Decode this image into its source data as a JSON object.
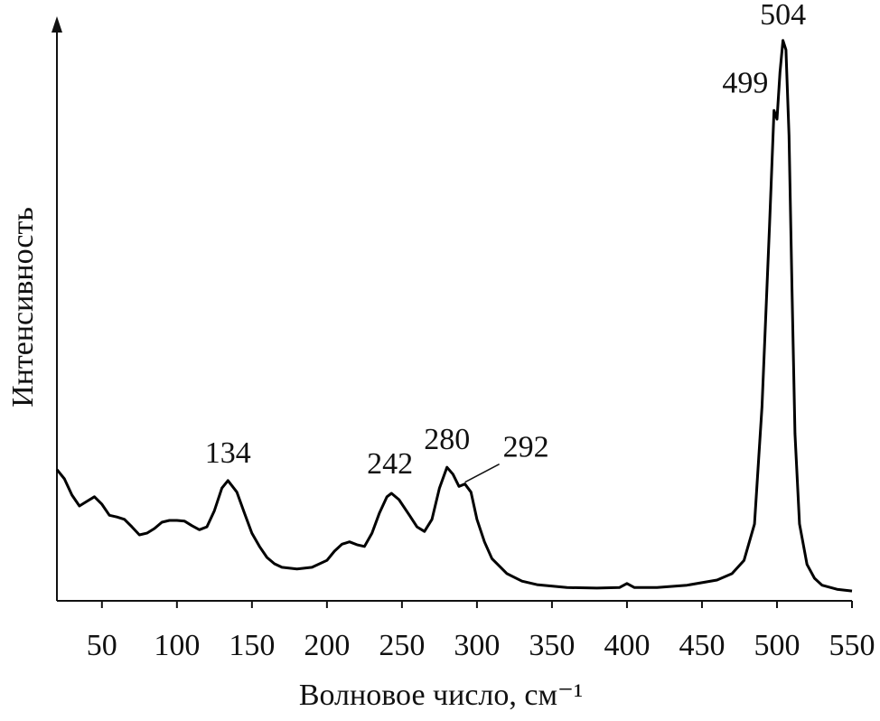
{
  "chart_data": {
    "type": "line",
    "xlabel": "Волновое число, см⁻¹",
    "ylabel": "Интенсивность",
    "x": [
      20,
      25,
      30,
      35,
      40,
      45,
      50,
      55,
      60,
      65,
      70,
      75,
      80,
      85,
      90,
      95,
      100,
      105,
      110,
      115,
      120,
      125,
      130,
      134,
      140,
      145,
      150,
      155,
      160,
      165,
      170,
      180,
      190,
      200,
      205,
      210,
      215,
      220,
      225,
      230,
      235,
      240,
      243,
      248,
      255,
      260,
      265,
      270,
      275,
      280,
      284,
      288,
      292,
      296,
      300,
      305,
      310,
      320,
      330,
      340,
      360,
      380,
      395,
      400,
      405,
      420,
      440,
      460,
      470,
      478,
      485,
      490,
      495,
      498,
      500,
      502,
      504,
      506,
      508,
      510,
      512,
      515,
      520,
      525,
      530,
      540,
      550
    ],
    "values": [
      22.7,
      21.1,
      18.3,
      16.4,
      17.2,
      18.0,
      16.7,
      14.8,
      14.5,
      14.1,
      12.8,
      11.4,
      11.7,
      12.5,
      13.6,
      13.9,
      13.9,
      13.8,
      13.0,
      12.3,
      12.8,
      15.6,
      19.5,
      20.8,
      18.8,
      15.2,
      11.7,
      9.4,
      7.5,
      6.4,
      5.8,
      5.5,
      5.8,
      7.0,
      8.6,
      9.8,
      10.2,
      9.7,
      9.4,
      11.7,
      15.2,
      18.0,
      18.6,
      17.5,
      14.8,
      12.8,
      12.0,
      14.1,
      19.5,
      23.1,
      21.9,
      19.8,
      20.2,
      18.8,
      14.1,
      10.2,
      7.3,
      4.7,
      3.4,
      2.8,
      2.3,
      2.2,
      2.3,
      3.0,
      2.3,
      2.3,
      2.7,
      3.6,
      4.7,
      7.0,
      13.3,
      33.6,
      64.8,
      84.8,
      83.3,
      91.4,
      96.9,
      95.3,
      80.5,
      53.9,
      28.9,
      13.3,
      6.3,
      3.9,
      2.7,
      2.0,
      1.7
    ],
    "color": "#000000",
    "xlim": [
      20,
      550
    ],
    "xticks": [
      50,
      100,
      150,
      200,
      250,
      300,
      350,
      400,
      450,
      500,
      550
    ],
    "ylim": [
      0,
      100
    ],
    "annotations": [
      "134",
      "242",
      "280",
      "292",
      "499",
      "504"
    ]
  }
}
